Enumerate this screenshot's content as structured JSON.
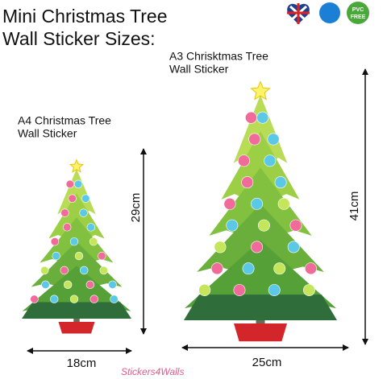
{
  "header": {
    "title_lines": [
      "Mini Christmas Tree",
      "Wall Sticker Sizes:"
    ]
  },
  "badges": {
    "pvc": [
      "PVC",
      "FREE"
    ]
  },
  "small_tree": {
    "label_lines": [
      "A4 Christmas Tree",
      "Wall Sticker"
    ],
    "height": "29cm",
    "width": "18cm"
  },
  "large_tree": {
    "label_lines": [
      "A3 Chrisktmas Tree",
      "Wall Sticker"
    ],
    "height": "41cm",
    "width": "25cm"
  },
  "watermark": "Stickers4Walls"
}
